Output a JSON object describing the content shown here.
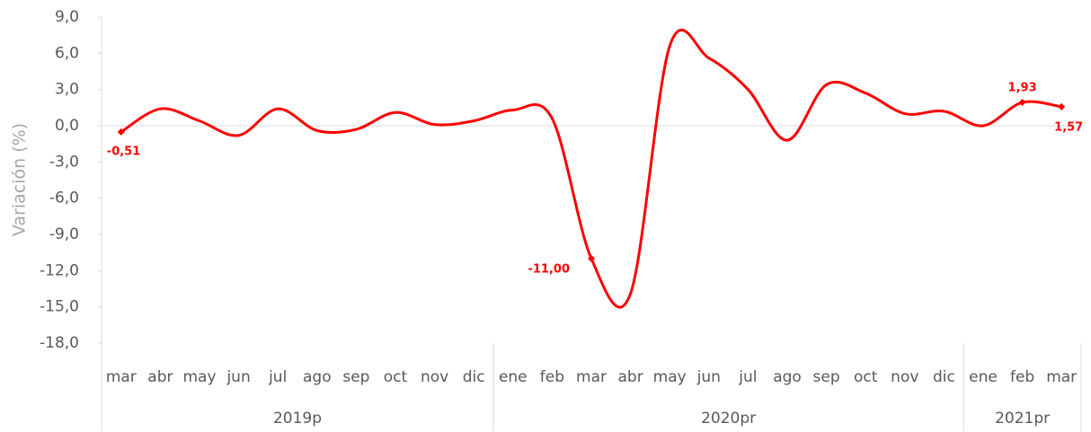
{
  "chart_data": {
    "type": "line",
    "y_label": "Variación (%)",
    "categories": [
      "mar",
      "abr",
      "may",
      "jun",
      "jul",
      "ago",
      "sep",
      "oct",
      "nov",
      "dic",
      "ene",
      "feb",
      "mar",
      "abr",
      "may",
      "jun",
      "jul",
      "ago",
      "sep",
      "oct",
      "nov",
      "dic",
      "ene",
      "feb",
      "mar"
    ],
    "groups": [
      {
        "name": "2019p",
        "span": 10
      },
      {
        "name": "2020pr",
        "span": 12
      },
      {
        "name": "2021pr",
        "span": 3
      }
    ],
    "series": [
      {
        "name": "Variación",
        "color": "#ff0000",
        "values": [
          -0.51,
          1.4,
          0.4,
          -0.8,
          1.4,
          -0.4,
          -0.3,
          1.1,
          0.1,
          0.4,
          1.3,
          0.6,
          -11.0,
          -13.9,
          6.6,
          5.6,
          3.0,
          -1.2,
          3.4,
          2.7,
          1.0,
          1.2,
          0.0,
          1.93,
          1.57
        ],
        "value_labels": [
          "-0,51",
          null,
          null,
          null,
          null,
          null,
          null,
          null,
          null,
          null,
          null,
          null,
          "-11,00",
          null,
          null,
          null,
          null,
          null,
          null,
          null,
          null,
          null,
          null,
          "1,93",
          "1,57"
        ]
      }
    ],
    "ylim": [
      -18,
      9
    ],
    "yticks": [
      {
        "value": -18,
        "label": "-18,0"
      },
      {
        "value": -15,
        "label": "-15,0"
      },
      {
        "value": -12,
        "label": "-12,0"
      },
      {
        "value": -9,
        "label": "-9,0"
      },
      {
        "value": -6,
        "label": "-6,0"
      },
      {
        "value": -3,
        "label": "-3,0"
      },
      {
        "value": 0,
        "label": "0,0"
      },
      {
        "value": 3,
        "label": "3,0"
      },
      {
        "value": 6,
        "label": "6,0"
      },
      {
        "value": 9,
        "label": "9,0"
      }
    ],
    "grid": false
  }
}
